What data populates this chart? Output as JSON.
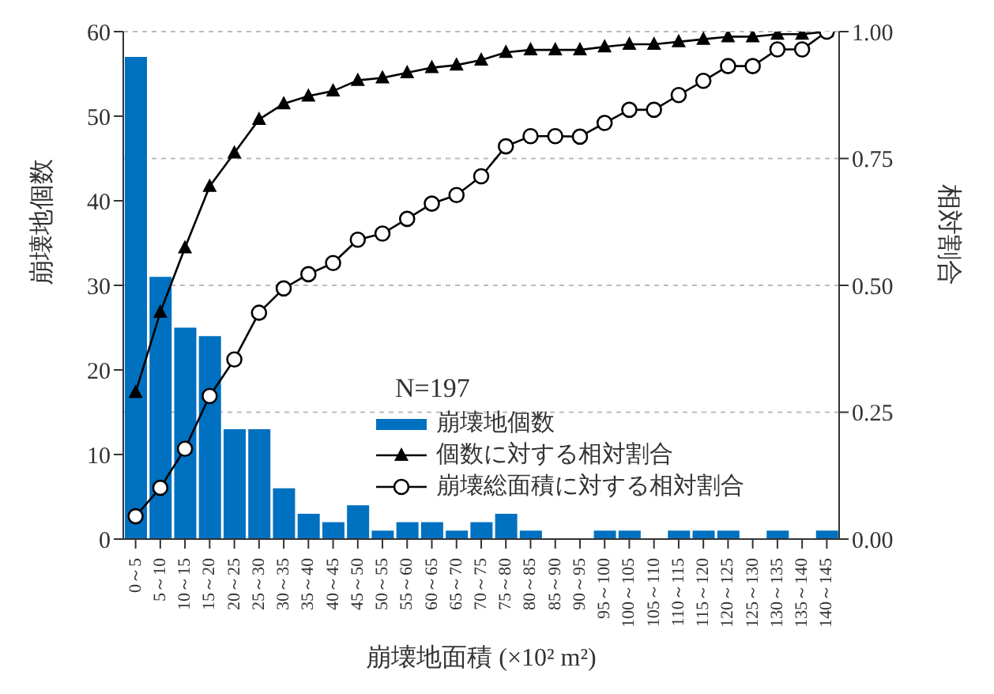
{
  "chart_data": {
    "type": "bar",
    "xlabel": "崩壊地面積 (×10² m²)",
    "ylabel": "崩壊地個数",
    "y2label": "相対割合",
    "categories": [
      "0～5",
      "5～10",
      "10～15",
      "15～20",
      "20～25",
      "25～30",
      "30～35",
      "35～40",
      "40～45",
      "45～50",
      "50～55",
      "55～60",
      "60～65",
      "65～70",
      "70～75",
      "75～80",
      "80～85",
      "85～90",
      "90～95",
      "95～100",
      "100～105",
      "105～110",
      "110～115",
      "115～120",
      "120～125",
      "125～130",
      "130～135",
      "135～140",
      "140～145"
    ],
    "series": [
      {
        "name": "崩壊地個数",
        "color": "#0070c0",
        "values": [
          57,
          31,
          25,
          24,
          13,
          13,
          6,
          3,
          2,
          4,
          1,
          2,
          2,
          1,
          2,
          3,
          1,
          0,
          0,
          1,
          1,
          0,
          1,
          1,
          1,
          0,
          1,
          0,
          1
        ]
      },
      {
        "name": "個数に対する相対割合",
        "type": "line",
        "axis": "y2",
        "marker": "triangle",
        "color": "#000000",
        "values": [
          0.289,
          0.447,
          0.574,
          0.695,
          0.761,
          0.827,
          0.858,
          0.873,
          0.883,
          0.904,
          0.909,
          0.919,
          0.929,
          0.934,
          0.944,
          0.959,
          0.964,
          0.964,
          0.964,
          0.97,
          0.975,
          0.975,
          0.98,
          0.985,
          0.99,
          0.99,
          0.995,
          0.995,
          1.0
        ]
      },
      {
        "name": "崩壊総面積に対する相対割合",
        "type": "line",
        "axis": "y2",
        "marker": "circle",
        "color": "#000000",
        "values": [
          0.045,
          0.101,
          0.178,
          0.282,
          0.354,
          0.446,
          0.494,
          0.522,
          0.544,
          0.59,
          0.602,
          0.631,
          0.661,
          0.678,
          0.715,
          0.774,
          0.794,
          0.794,
          0.793,
          0.82,
          0.846,
          0.846,
          0.875,
          0.903,
          0.932,
          0.932,
          0.965,
          0.965,
          1.0
        ]
      }
    ],
    "ylim": [
      0,
      60
    ],
    "yticks": [
      0,
      10,
      20,
      30,
      40,
      50,
      60
    ],
    "y2lim": [
      0,
      1
    ],
    "y2ticks": [
      {
        "value": 0,
        "label": "0.00"
      },
      {
        "value": 0.25,
        "label": "0.25"
      },
      {
        "value": 0.5,
        "label": "0.50"
      },
      {
        "value": 0.75,
        "label": "0.75"
      },
      {
        "value": 1,
        "label": "1.00"
      }
    ],
    "grid": "y",
    "legend": "bottom right",
    "line_style": "solid",
    "annotations": [
      "N=197"
    ]
  }
}
